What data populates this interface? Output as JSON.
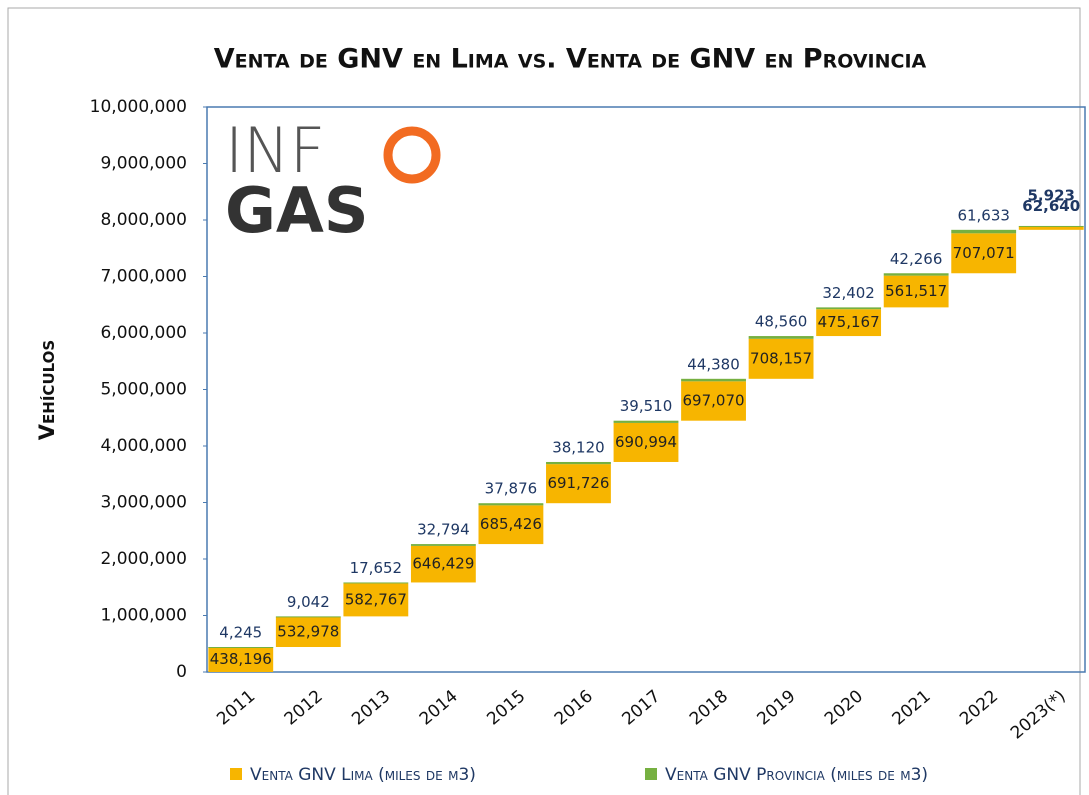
{
  "logo": [
    "INF",
    "GAS"
  ],
  "chart_data": {
    "type": "waterfall",
    "title": "Venta de GNV en Lima vs. Venta de GNV en Provincia",
    "ylabel": "Vehículos",
    "categories": [
      "2011",
      "2012",
      "2013",
      "2014",
      "2015",
      "2016",
      "2017",
      "2018",
      "2019",
      "2020",
      "2021",
      "2022",
      "2023(*)"
    ],
    "series": [
      {
        "name": "Venta GNV Lima (miles de m3)",
        "color": "#f7b500",
        "values": [
          438196,
          532978,
          582767,
          646429,
          685426,
          691726,
          690994,
          697070,
          708157,
          475167,
          561517,
          707071,
          62640
        ],
        "value_labels": [
          "438,196",
          "532,978",
          "582,767",
          "646,429",
          "685,426",
          "691,726",
          "690,994",
          "697,070",
          "708,157",
          "475,167",
          "561,517",
          "707,071",
          "62,640"
        ]
      },
      {
        "name": "Venta GNV Provincia (miles de m3)",
        "color": "#76b041",
        "values": [
          4245,
          9042,
          17652,
          32794,
          37876,
          38120,
          39510,
          44380,
          48560,
          32402,
          42266,
          61633,
          5923
        ],
        "value_labels": [
          "4,245",
          "9,042",
          "17,652",
          "32,794",
          "37,876",
          "38,120",
          "39,510",
          "44,380",
          "48,560",
          "32,402",
          "42,266",
          "61,633",
          "5,923"
        ]
      }
    ],
    "ylim": [
      0,
      10000000
    ],
    "yticks": [
      0,
      {
        "value": 1000000,
        "label": "1,000,000"
      },
      {
        "value": 2000000,
        "label": "2,000,000"
      },
      {
        "value": 3000000,
        "label": "3,000,000"
      },
      {
        "value": 4000000,
        "label": "4,000,000"
      },
      {
        "value": 5000000,
        "label": "5,000,000"
      },
      {
        "value": 6000000,
        "label": "6,000,000"
      },
      {
        "value": 7000000,
        "label": "7,000,000"
      },
      {
        "value": 8000000,
        "label": "8,000,000"
      },
      {
        "value": 9000000,
        "label": "9,000,000"
      },
      {
        "value": 10000000,
        "label": "10,000,000"
      }
    ],
    "grid": false,
    "legend": "bottom"
  }
}
